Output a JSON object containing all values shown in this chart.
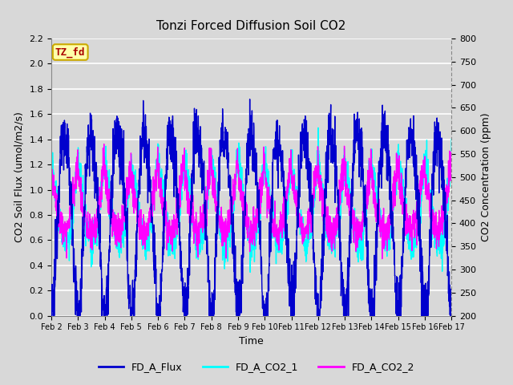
{
  "title": "Tonzi Forced Diffusion Soil CO2",
  "xlabel": "Time",
  "ylabel_left": "CO2 Soil Flux (umol/m2/s)",
  "ylabel_right": "CO2 Concentration (ppm)",
  "ylim_left": [
    0.0,
    2.2
  ],
  "ylim_right": [
    200,
    800
  ],
  "yticks_left": [
    0.0,
    0.2,
    0.4,
    0.6,
    0.8,
    1.0,
    1.2,
    1.4,
    1.6,
    1.8,
    2.0,
    2.2
  ],
  "yticks_right": [
    200,
    250,
    300,
    350,
    400,
    450,
    500,
    550,
    600,
    650,
    700,
    750,
    800
  ],
  "xtick_labels": [
    "Feb 2",
    "Feb 3",
    "Feb 4",
    "Feb 5",
    "Feb 6",
    "Feb 7",
    "Feb 8",
    "Feb 9",
    "Feb 10",
    "Feb 11",
    "Feb 12",
    "Feb 13",
    "Feb 14",
    "Feb 15",
    "Feb 16",
    "Feb 17"
  ],
  "flux_color": "#0000CD",
  "co2_1_color": "#00FFFF",
  "co2_2_color": "#FF00FF",
  "legend_labels": [
    "FD_A_Flux",
    "FD_A_CO2_1",
    "FD_A_CO2_2"
  ],
  "box_label": "TZ_fd",
  "box_facecolor": "#FFFFAA",
  "box_edgecolor": "#CCAA00",
  "box_textcolor": "#AA0000",
  "background_color": "#D8D8D8",
  "axes_facecolor": "#D8D8D8",
  "grid_color": "#FFFFFF",
  "linewidth": 1.0,
  "n_points": 2160,
  "days": 15,
  "right_axis_dotted": true
}
